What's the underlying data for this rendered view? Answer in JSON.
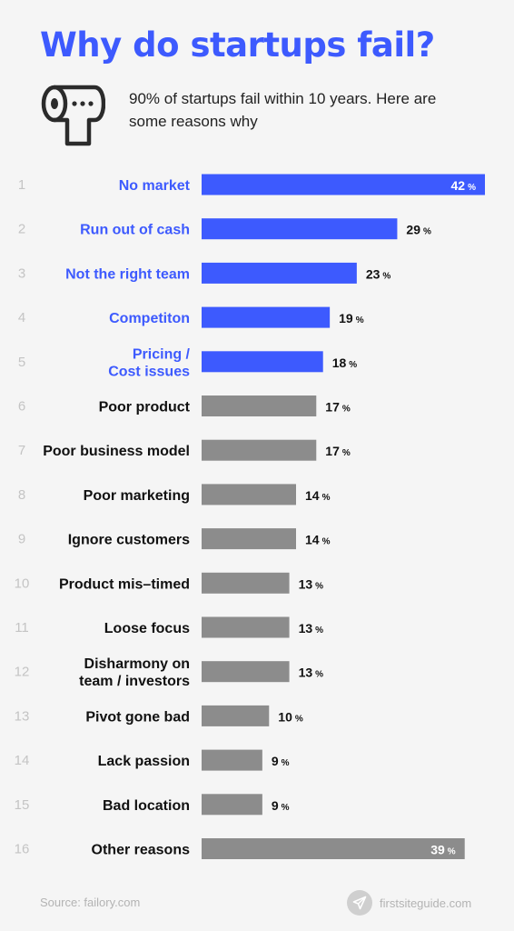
{
  "header": {
    "title": "Why do startups fail?",
    "subtitle": "90% of startups fail within 10 years. Here are some reasons why",
    "icon": "toilet-paper-roll-icon"
  },
  "chart_data": {
    "type": "bar",
    "orientation": "horizontal",
    "unit": "%",
    "ranks": [
      "1",
      "2",
      "3",
      "4",
      "5",
      "6",
      "7",
      "8",
      "9",
      "10",
      "11",
      "12",
      "13",
      "14",
      "15",
      "16"
    ],
    "categories": [
      [
        "No market"
      ],
      [
        "Run out of cash"
      ],
      [
        "Not the right team"
      ],
      [
        "Competiton"
      ],
      [
        "Pricing /",
        "Cost issues"
      ],
      [
        "Poor product"
      ],
      [
        "Poor business model"
      ],
      [
        "Poor marketing"
      ],
      [
        "Ignore customers"
      ],
      [
        "Product mis–timed"
      ],
      [
        "Loose focus"
      ],
      [
        "Disharmony on",
        "team / investors"
      ],
      [
        "Pivot gone bad"
      ],
      [
        "Lack passion"
      ],
      [
        "Bad location"
      ],
      [
        "Other reasons"
      ]
    ],
    "values": [
      42,
      29,
      23,
      19,
      18,
      17,
      17,
      14,
      14,
      13,
      13,
      13,
      10,
      9,
      9,
      39
    ],
    "highlight_count": 5,
    "value_labels_inside": [
      0,
      15
    ],
    "colors": {
      "highlight": "#3d5afe",
      "default": "#8c8c8c",
      "highlight_label": "#3d5afe",
      "default_label": "#111111",
      "rank": "#c4c4c4",
      "value_text": "#111111",
      "inside_value_text": "#ffffff"
    }
  },
  "footer": {
    "source": "Source: failory.com",
    "brand": "firstsiteguide.com",
    "brand_icon": "paper-plane-icon"
  }
}
